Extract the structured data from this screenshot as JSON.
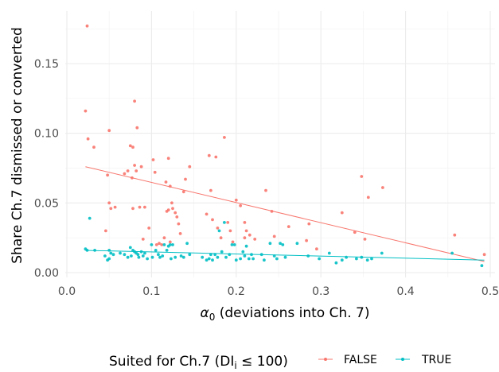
{
  "chart_data": {
    "type": "scatter",
    "title": "",
    "xlabel_symbol": "α",
    "xlabel_subscript": "0",
    "xlabel_rest": " (deviations into Ch. 7)",
    "ylabel": "Share Ch.7 dismissed or converted",
    "xlim": [
      0,
      0.5
    ],
    "ylim": [
      0,
      0.18
    ],
    "x_ticks": [
      0.0,
      0.1,
      0.2,
      0.3,
      0.4,
      0.5
    ],
    "x_tick_labels": [
      "0.0",
      "0.1",
      "0.2",
      "0.3",
      "0.4",
      "0.5"
    ],
    "y_ticks": [
      0.0,
      0.05,
      0.1,
      0.15
    ],
    "y_tick_labels": [
      "0.00",
      "0.05",
      "0.10",
      "0.15"
    ],
    "grid": true,
    "legend_position": "bottom",
    "legend": {
      "title_prefix": "Suited for Ch.7 (DI",
      "title_subscript": "i",
      "title_suffix": " ≤ 100)",
      "entries": [
        "FALSE",
        "TRUE"
      ]
    },
    "series": [
      {
        "name": "FALSE",
        "color": "#F8766D",
        "points": [
          [
            0.024,
            0.177
          ],
          [
            0.022,
            0.116
          ],
          [
            0.025,
            0.096
          ],
          [
            0.032,
            0.09
          ],
          [
            0.05,
            0.102
          ],
          [
            0.048,
            0.07
          ],
          [
            0.05,
            0.05
          ],
          [
            0.052,
            0.046
          ],
          [
            0.046,
            0.03
          ],
          [
            0.057,
            0.047
          ],
          [
            0.068,
            0.071
          ],
          [
            0.075,
            0.091
          ],
          [
            0.078,
            0.09
          ],
          [
            0.08,
            0.123
          ],
          [
            0.083,
            0.104
          ],
          [
            0.08,
            0.077
          ],
          [
            0.088,
            0.076
          ],
          [
            0.072,
            0.073
          ],
          [
            0.077,
            0.068
          ],
          [
            0.082,
            0.073
          ],
          [
            0.086,
            0.047
          ],
          [
            0.078,
            0.046
          ],
          [
            0.092,
            0.047
          ],
          [
            0.09,
            0.024
          ],
          [
            0.097,
            0.032
          ],
          [
            0.102,
            0.081
          ],
          [
            0.104,
            0.072
          ],
          [
            0.106,
            0.02
          ],
          [
            0.109,
            0.021
          ],
          [
            0.112,
            0.02
          ],
          [
            0.115,
            0.025
          ],
          [
            0.117,
            0.065
          ],
          [
            0.12,
            0.082
          ],
          [
            0.12,
            0.045
          ],
          [
            0.118,
            0.044
          ],
          [
            0.122,
            0.062
          ],
          [
            0.124,
            0.05
          ],
          [
            0.125,
            0.046
          ],
          [
            0.128,
            0.043
          ],
          [
            0.13,
            0.04
          ],
          [
            0.132,
            0.035
          ],
          [
            0.134,
            0.028
          ],
          [
            0.122,
            0.022
          ],
          [
            0.138,
            0.058
          ],
          [
            0.14,
            0.067
          ],
          [
            0.145,
            0.076
          ],
          [
            0.165,
            0.042
          ],
          [
            0.168,
            0.084
          ],
          [
            0.17,
            0.059
          ],
          [
            0.172,
            0.038
          ],
          [
            0.176,
            0.083
          ],
          [
            0.178,
            0.032
          ],
          [
            0.182,
            0.025
          ],
          [
            0.186,
            0.097
          ],
          [
            0.19,
            0.036
          ],
          [
            0.193,
            0.03
          ],
          [
            0.196,
            0.022
          ],
          [
            0.2,
            0.052
          ],
          [
            0.205,
            0.048
          ],
          [
            0.21,
            0.036
          ],
          [
            0.212,
            0.03
          ],
          [
            0.216,
            0.027
          ],
          [
            0.21,
            0.025
          ],
          [
            0.222,
            0.024
          ],
          [
            0.235,
            0.059
          ],
          [
            0.242,
            0.044
          ],
          [
            0.245,
            0.026
          ],
          [
            0.262,
            0.033
          ],
          [
            0.283,
            0.023
          ],
          [
            0.286,
            0.035
          ],
          [
            0.295,
            0.017
          ],
          [
            0.325,
            0.043
          ],
          [
            0.34,
            0.029
          ],
          [
            0.348,
            0.069
          ],
          [
            0.352,
            0.024
          ],
          [
            0.356,
            0.054
          ],
          [
            0.373,
            0.061
          ],
          [
            0.458,
            0.027
          ],
          [
            0.493,
            0.013
          ]
        ],
        "trend": [
          [
            0.022,
            0.076
          ],
          [
            0.493,
            0.008
          ]
        ]
      },
      {
        "name": "TRUE",
        "color": "#00BFC4",
        "points": [
          [
            0.022,
            0.017
          ],
          [
            0.024,
            0.016
          ],
          [
            0.027,
            0.039
          ],
          [
            0.033,
            0.016
          ],
          [
            0.045,
            0.012
          ],
          [
            0.048,
            0.009
          ],
          [
            0.05,
            0.016
          ],
          [
            0.052,
            0.014
          ],
          [
            0.055,
            0.013
          ],
          [
            0.05,
            0.01
          ],
          [
            0.063,
            0.014
          ],
          [
            0.068,
            0.013
          ],
          [
            0.072,
            0.011
          ],
          [
            0.075,
            0.018
          ],
          [
            0.076,
            0.012
          ],
          [
            0.078,
            0.016
          ],
          [
            0.08,
            0.015
          ],
          [
            0.082,
            0.014
          ],
          [
            0.084,
            0.013
          ],
          [
            0.085,
            0.011
          ],
          [
            0.088,
            0.015
          ],
          [
            0.09,
            0.012
          ],
          [
            0.092,
            0.014
          ],
          [
            0.095,
            0.01
          ],
          [
            0.1,
            0.02
          ],
          [
            0.101,
            0.011
          ],
          [
            0.105,
            0.016
          ],
          [
            0.108,
            0.013
          ],
          [
            0.11,
            0.011
          ],
          [
            0.113,
            0.012
          ],
          [
            0.115,
            0.02
          ],
          [
            0.118,
            0.016
          ],
          [
            0.12,
            0.019
          ],
          [
            0.122,
            0.02
          ],
          [
            0.123,
            0.01
          ],
          [
            0.125,
            0.02
          ],
          [
            0.128,
            0.011
          ],
          [
            0.135,
            0.012
          ],
          [
            0.138,
            0.011
          ],
          [
            0.142,
            0.021
          ],
          [
            0.145,
            0.013
          ],
          [
            0.16,
            0.011
          ],
          [
            0.165,
            0.009
          ],
          [
            0.168,
            0.01
          ],
          [
            0.17,
            0.013
          ],
          [
            0.172,
            0.009
          ],
          [
            0.175,
            0.013
          ],
          [
            0.178,
            0.011
          ],
          [
            0.18,
            0.03
          ],
          [
            0.183,
            0.015
          ],
          [
            0.186,
            0.036
          ],
          [
            0.188,
            0.011
          ],
          [
            0.192,
            0.013
          ],
          [
            0.195,
            0.02
          ],
          [
            0.198,
            0.02
          ],
          [
            0.2,
            0.009
          ],
          [
            0.205,
            0.01
          ],
          [
            0.208,
            0.015
          ],
          [
            0.21,
            0.012
          ],
          [
            0.212,
            0.019
          ],
          [
            0.215,
            0.01
          ],
          [
            0.218,
            0.013
          ],
          [
            0.22,
            0.01
          ],
          [
            0.23,
            0.013
          ],
          [
            0.233,
            0.009
          ],
          [
            0.24,
            0.021
          ],
          [
            0.245,
            0.012
          ],
          [
            0.248,
            0.01
          ],
          [
            0.252,
            0.021
          ],
          [
            0.255,
            0.02
          ],
          [
            0.258,
            0.011
          ],
          [
            0.272,
            0.021
          ],
          [
            0.285,
            0.012
          ],
          [
            0.298,
            0.01
          ],
          [
            0.31,
            0.014
          ],
          [
            0.318,
            0.007
          ],
          [
            0.325,
            0.009
          ],
          [
            0.33,
            0.011
          ],
          [
            0.342,
            0.01
          ],
          [
            0.348,
            0.011
          ],
          [
            0.355,
            0.009
          ],
          [
            0.36,
            0.01
          ],
          [
            0.372,
            0.014
          ],
          [
            0.455,
            0.014
          ],
          [
            0.49,
            0.005
          ]
        ],
        "trend": [
          [
            0.022,
            0.016
          ],
          [
            0.493,
            0.009
          ]
        ]
      }
    ]
  }
}
